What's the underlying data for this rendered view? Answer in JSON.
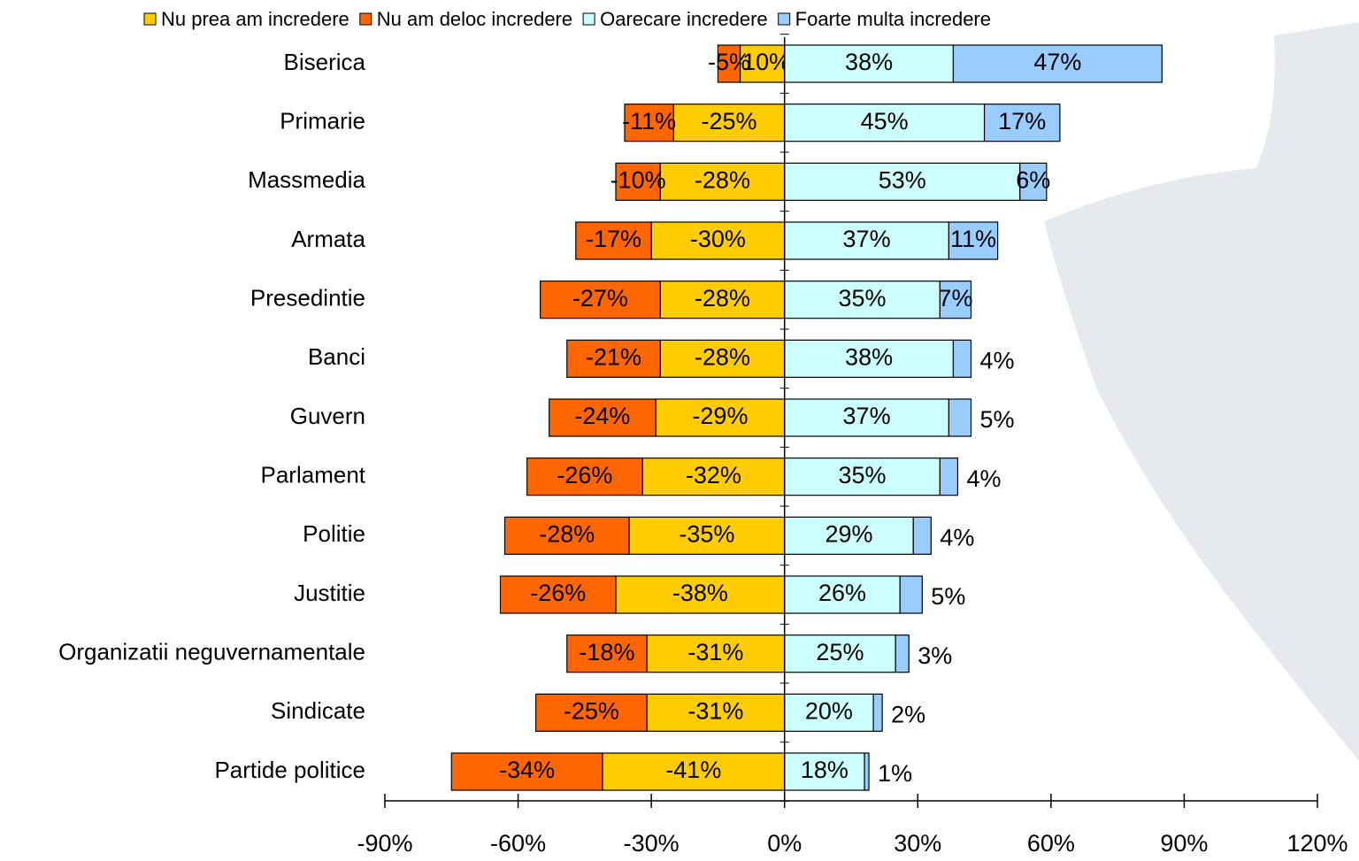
{
  "chart_data": {
    "type": "diverging-stacked-bar",
    "orientation": "horizontal",
    "categories": [
      "Biserica",
      "Primarie",
      "Massmedia",
      "Armata",
      "Presedintie",
      "Banci",
      "Guvern",
      "Parlament",
      "Politie",
      "Justitie",
      "Organizatii neguvernamentale",
      "Sindicate",
      "Partide politice"
    ],
    "series": [
      {
        "name": "Nu prea am incredere",
        "color": "#ffcc00",
        "values": [
          -10,
          -25,
          -28,
          -30,
          -28,
          -28,
          -29,
          -32,
          -35,
          -38,
          -31,
          -31,
          -41
        ],
        "value_labels": [
          "-10%",
          "-25%",
          "-28%",
          "-30%",
          "-28%",
          "-28%",
          "-29%",
          "-32%",
          "-35%",
          "-38%",
          "-31%",
          "-31%",
          "-41%"
        ]
      },
      {
        "name": "Nu am deloc incredere",
        "color": "#ff6600",
        "values": [
          -5,
          -11,
          -10,
          -17,
          -27,
          -21,
          -24,
          -26,
          -28,
          -26,
          -18,
          -25,
          -34
        ],
        "value_labels": [
          "-5%",
          "-11%",
          "-10%",
          "-17%",
          "-27%",
          "-21%",
          "-24%",
          "-26%",
          "-28%",
          "-26%",
          "-18%",
          "-25%",
          "-34%"
        ]
      },
      {
        "name": "Oarecare incredere",
        "color": "#ccffff",
        "values": [
          38,
          45,
          53,
          37,
          35,
          38,
          37,
          35,
          29,
          26,
          25,
          20,
          18
        ],
        "value_labels": [
          "38%",
          "45%",
          "53%",
          "37%",
          "35%",
          "38%",
          "37%",
          "35%",
          "29%",
          "26%",
          "25%",
          "20%",
          "18%"
        ]
      },
      {
        "name": "Foarte multa incredere",
        "color": "#99ccff",
        "values": [
          47,
          17,
          6,
          11,
          7,
          4,
          5,
          4,
          4,
          5,
          3,
          2,
          1
        ],
        "value_labels": [
          "47%",
          "17%",
          "6%",
          "11%",
          "7%",
          "4%",
          "5%",
          "4%",
          "4%",
          "5%",
          "3%",
          "2%",
          "1%"
        ]
      }
    ],
    "xlim": [
      -90,
      120
    ],
    "xticks": [
      {
        "value": -90,
        "label": "-90%"
      },
      {
        "value": -60,
        "label": "-60%"
      },
      {
        "value": -30,
        "label": "-30%"
      },
      {
        "value": 0,
        "label": "0%"
      },
      {
        "value": 30,
        "label": "30%"
      },
      {
        "value": 60,
        "label": "60%"
      },
      {
        "value": 90,
        "label": "90%"
      },
      {
        "value": 120,
        "label": "120%"
      }
    ],
    "legend": "top"
  }
}
